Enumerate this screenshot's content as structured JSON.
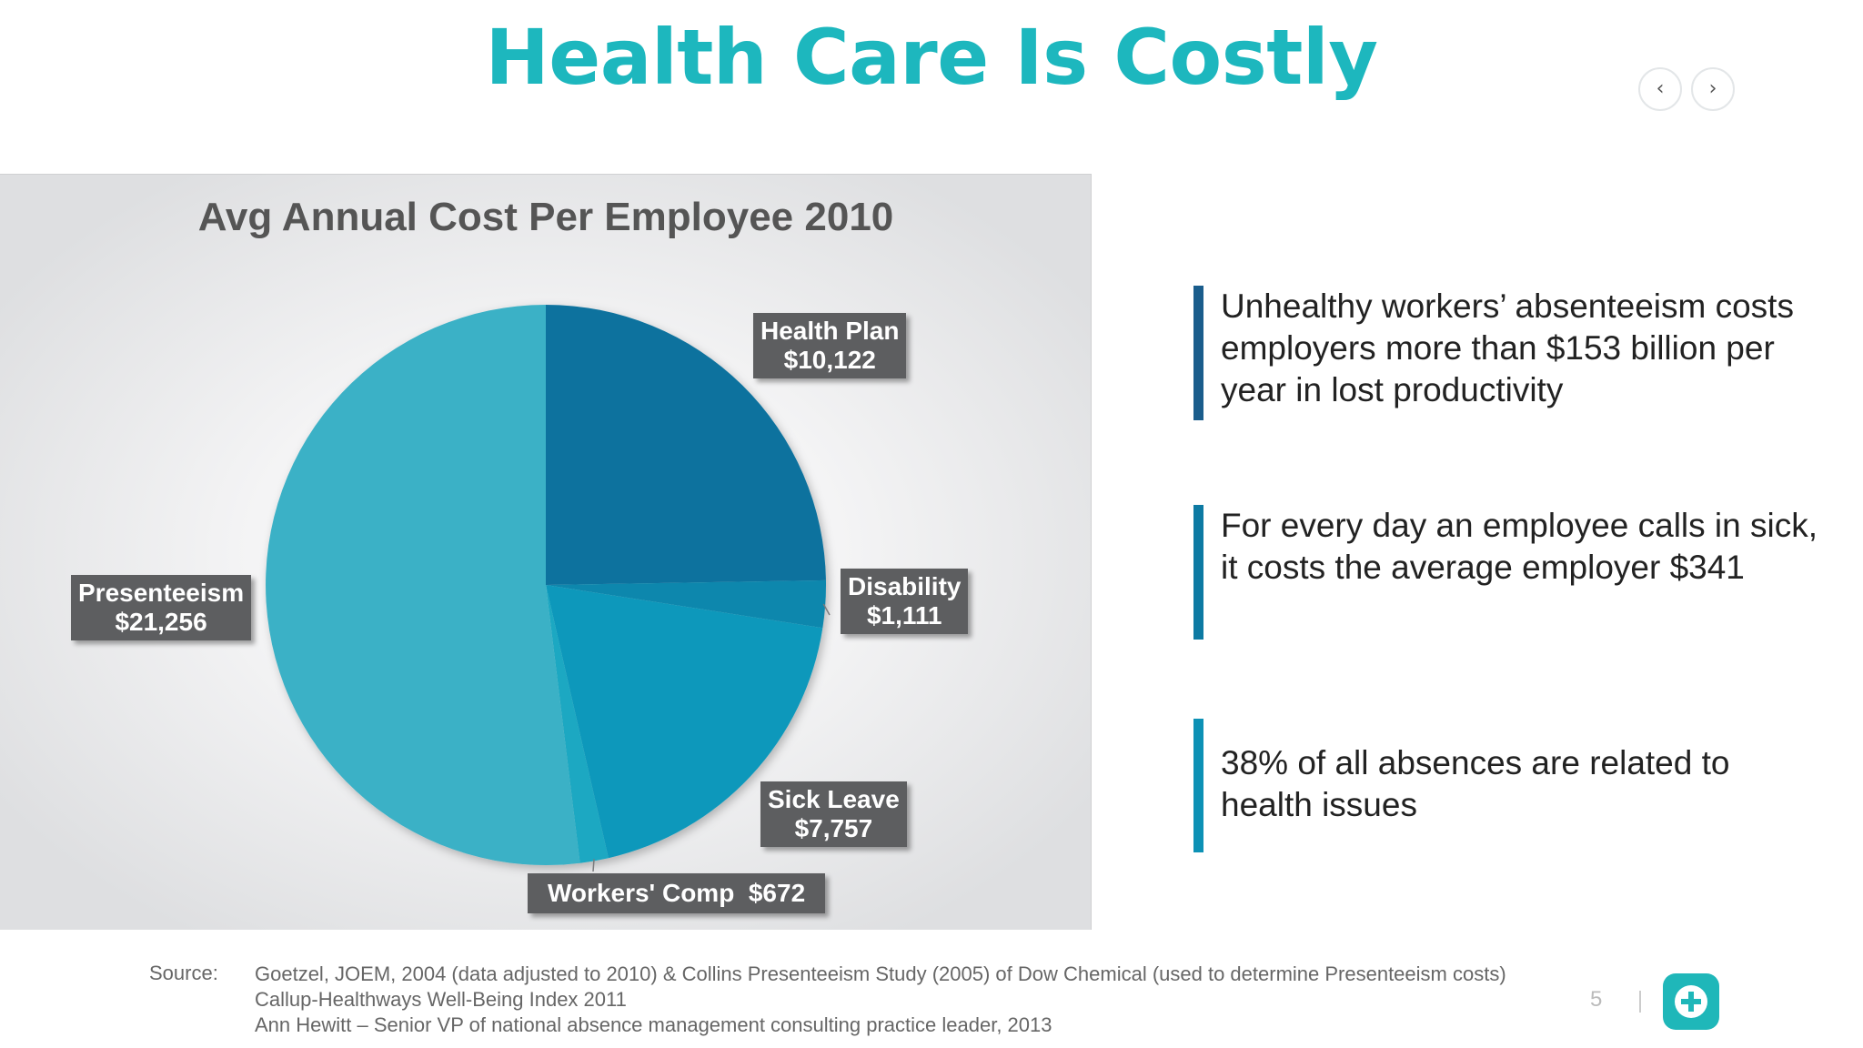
{
  "slide": {
    "title": "Health Care Is Costly",
    "page_number": "5",
    "nav_prev_icon": "chevron-left-icon",
    "nav_next_icon": "chevron-right-icon",
    "logo_icon": "plus-circle-icon",
    "colors": {
      "title": "#1db7be",
      "logo": "#1fb7b9"
    }
  },
  "chart_data": {
    "type": "pie",
    "title": "Avg Annual Cost Per Employee 2010",
    "slices": [
      {
        "name": "Health Plan",
        "value": 10122,
        "label": "$10,122",
        "color": "#0a729e"
      },
      {
        "name": "Disability",
        "value": 1111,
        "label": "$1,111",
        "color": "#0a87ad"
      },
      {
        "name": "Sick Leave",
        "value": 7757,
        "label": "$7,757",
        "color": "#0b98bb"
      },
      {
        "name": "Workers' Comp",
        "value": 672,
        "label": "$672",
        "color": "#1aa8c2"
      },
      {
        "name": "Presenteeism",
        "value": 21256,
        "label": "$21,256",
        "color": "#3bb1c6"
      }
    ],
    "legend": "none",
    "data_labels": "callout boxes"
  },
  "bullets": [
    {
      "text": "Unhealthy workers’ absenteeism costs employers more than $153 billion per year in lost productivity",
      "bar_color": "#1a5d8c"
    },
    {
      "text": "For every day an employee calls in sick, it costs the average employer $341",
      "bar_color": "#0d7aa3"
    },
    {
      "text": "38% of all absences are related to health issues",
      "bar_color": "#0d91b5"
    }
  ],
  "source": {
    "label": "Source:",
    "lines": [
      "Goetzel, JOEM, 2004 (data adjusted to 2010) & Collins Presenteeism Study (2005) of Dow Chemical (used to determine Presenteeism costs)",
      "Callup-Healthways Well-Being Index 2011",
      "Ann Hewitt – Senior VP of national absence management consulting practice leader, 2013"
    ]
  }
}
